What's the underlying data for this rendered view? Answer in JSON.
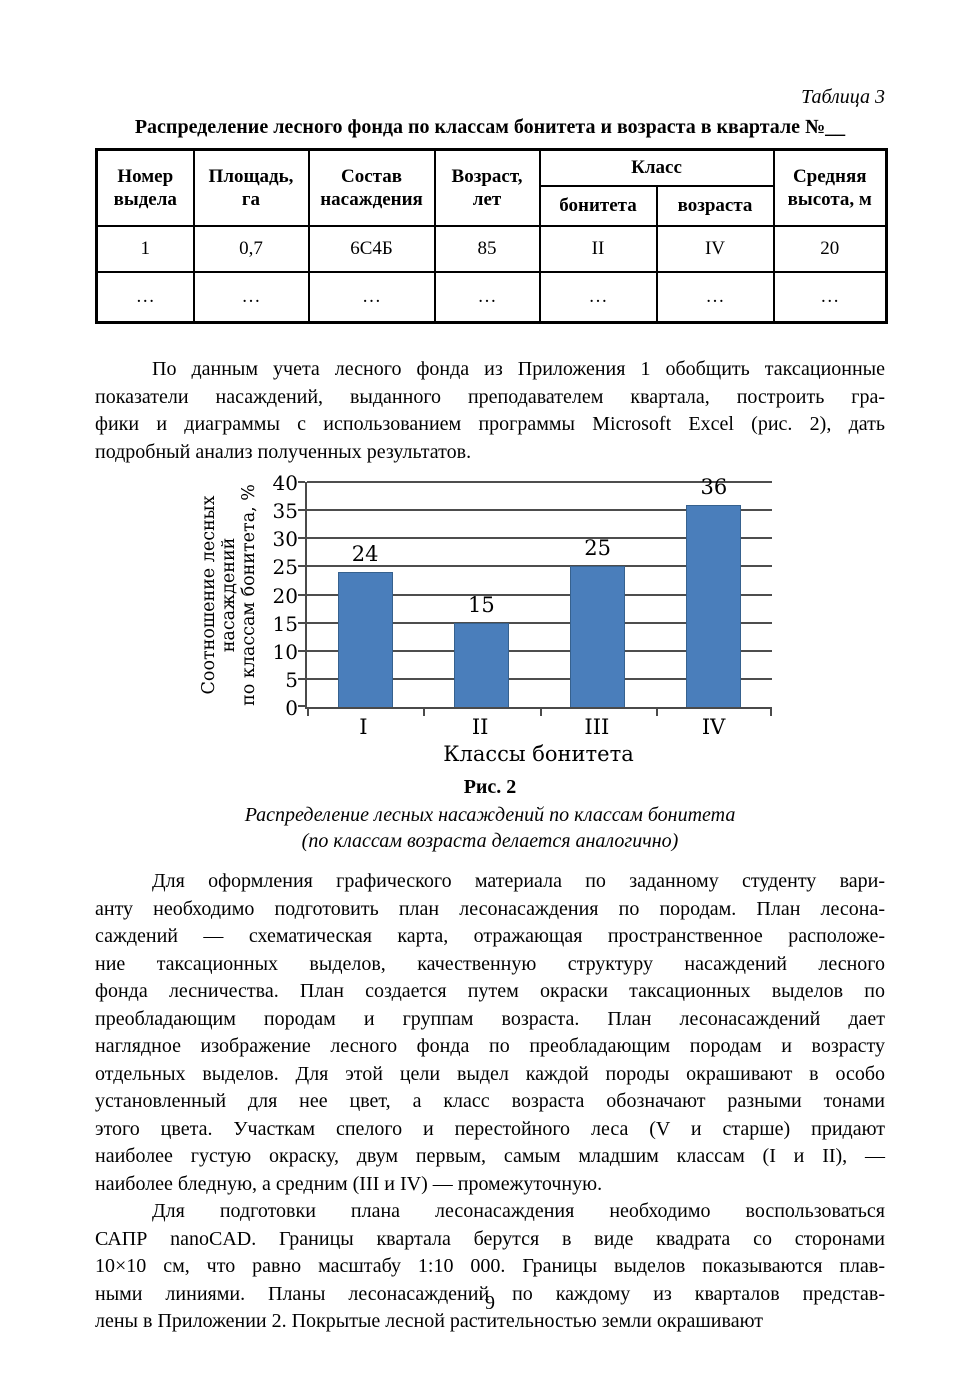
{
  "page": {
    "page_number": "9"
  },
  "table_block": {
    "label": "Таблица 3",
    "title": "Распределение лесного фонда по классам бонитета и возраста в квартале №__",
    "group_header": "Класс",
    "columns": [
      "Номер выдела",
      "Площадь, га",
      "Состав насаждения",
      "Возраст, лет",
      "бонитета",
      "возраста",
      "Средняя высота, м"
    ],
    "rows": [
      [
        "1",
        "0,7",
        "6С4Б",
        "85",
        "II",
        "IV",
        "20"
      ],
      [
        "…",
        "…",
        "…",
        "…",
        "…",
        "…",
        "…"
      ]
    ]
  },
  "paragraphs": {
    "p1": {
      "lines": [
        "По данным учета лесного фонда из Приложения 1 обобщить таксационные",
        "показатели насаждений, выданного преподавателем квартала, построить гра-",
        "фики и диаграммы с использованием программы Microsoft Excel (рис. 2), дать",
        "подробный анализ полученных результатов."
      ]
    },
    "p2": {
      "lines": [
        "Для оформления графического материала по заданному студенту вари-",
        "анту необходимо подготовить план лесонасаждения по породам. План лесона-",
        "саждений — схематическая карта, отражающая пространственное расположе-",
        "ние таксационных выделов, качественную структуру насаждений лесного",
        "фонда лесничества. План создается путем окраски таксационных выделов по",
        "преобладающим породам и группам возраста. План лесонасаждений дает",
        "наглядное изображение лесного фонда по преобладающим породам и возрасту",
        "отдельных выделов. Для этой цели выдел каждой породы окрашивают в особо",
        "установленный для нее цвет, а класс возраста обозначают разными тонами",
        "этого цвета. Участкам спелого и перестойного леса (V и старше) придают",
        "наиболее густую окраску, двум первым, самым младшим классам (I и II), —",
        "наиболее бледную, а средним (III и IV) — промежуточную."
      ]
    },
    "p3": {
      "lines": [
        "Для подготовки плана лесонасаждения необходимо воспользоваться",
        "САПР nanoCAD. Границы квартала берутся в виде квадрата со сторонами",
        "10×10 см, что равно масштабу 1:10 000. Границы выделов показываются плав-",
        "ными линиями. Планы лесонасаждений по каждому из кварталов представ-",
        "лены в Приложении 2. Покрытые лесной растительностью земли окрашивают"
      ]
    }
  },
  "figure": {
    "label": "Рис. 2",
    "caption_lines": [
      "Распределение лесных насаждений по классам бонитета",
      "(по классам возраста делается аналогично)"
    ]
  },
  "chart_data": {
    "type": "bar",
    "categories": [
      "I",
      "II",
      "III",
      "IV"
    ],
    "values": [
      24,
      15,
      25,
      36
    ],
    "title": "",
    "xlabel": "Классы бонитета",
    "ylabel": "Соотношение лесных насаждений по классам бонитета, %",
    "ylabel_display": "Соотношение лесных\nнасаждений\nпо классам бонитета, %",
    "ylim": [
      0,
      40
    ],
    "yticks": [
      0,
      5,
      10,
      15,
      20,
      25,
      30,
      35,
      40
    ],
    "grid": true,
    "legend": false,
    "bar_color": "#4a7ebb",
    "bar_border_color": "#36618e",
    "grid_color": "#4d4d4d",
    "axis_color": "#4a4a4a"
  }
}
